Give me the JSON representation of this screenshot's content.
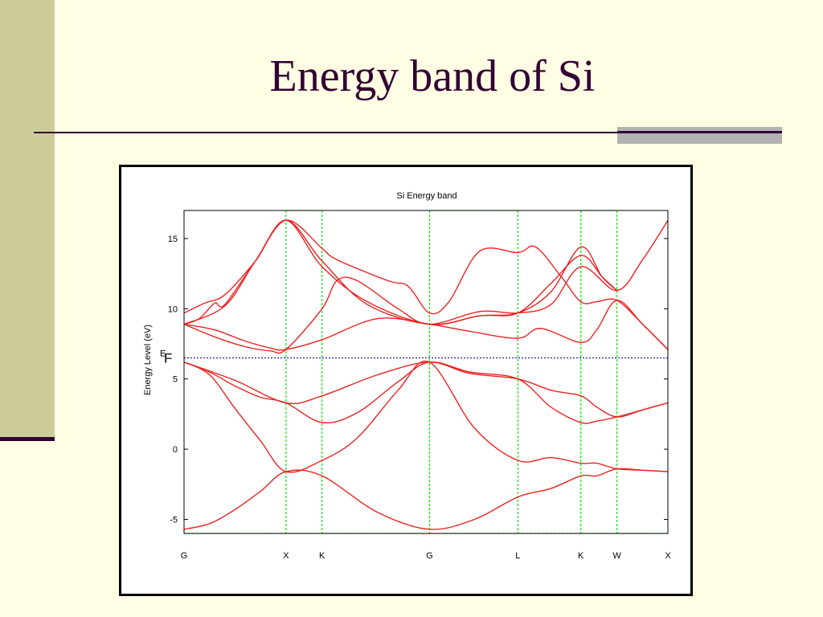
{
  "slide": {
    "title": "Energy band of Si",
    "colors": {
      "background": "#FFFDE3",
      "sidebar": "#CCCC99",
      "title_text": "#330033",
      "accent_gray": "#B2B2B2"
    }
  },
  "chart_data": {
    "type": "line",
    "title": "Si Energy band",
    "ylabel": "Energy Level (eV)",
    "xlabel": "",
    "ylim": [
      -6,
      17
    ],
    "yticks": [
      -5,
      0,
      5,
      10,
      15
    ],
    "x_points": [
      {
        "label": "G",
        "x": 0
      },
      {
        "label": "X",
        "x": 1
      },
      {
        "label": "K",
        "x": 1.354
      },
      {
        "label": "G",
        "x": 2.409
      },
      {
        "label": "L",
        "x": 3.276
      },
      {
        "label": "K",
        "x": 3.894
      },
      {
        "label": "W",
        "x": 4.248
      },
      {
        "label": "X",
        "x": 4.748
      }
    ],
    "xlim": [
      0,
      4.748
    ],
    "fermi_level": {
      "value": 6.5,
      "label": "E",
      "sub": "F"
    },
    "grid": "vertical dashed lines at high-symmetry points",
    "colors": {
      "bands": "#EE2222",
      "fermi": "#2222BB",
      "symmetry_lines": "#22DD22"
    },
    "series": [
      {
        "values": [
          [
            0,
            -5.7
          ],
          [
            0.25,
            -5.3
          ],
          [
            0.5,
            -4.3
          ],
          [
            0.75,
            -3.0
          ],
          [
            1,
            -1.6
          ],
          [
            1.354,
            -1.9
          ],
          [
            1.9,
            -4.5
          ],
          [
            2.409,
            -5.7
          ],
          [
            2.85,
            -5.0
          ],
          [
            3.276,
            -3.4
          ],
          [
            3.6,
            -2.8
          ],
          [
            3.894,
            -1.9
          ],
          [
            4.05,
            -1.9
          ],
          [
            4.248,
            -1.4
          ],
          [
            4.5,
            -1.5
          ],
          [
            4.748,
            -1.6
          ]
        ]
      },
      {
        "values": [
          [
            0,
            6.2
          ],
          [
            0.25,
            5.3
          ],
          [
            0.5,
            2.9
          ],
          [
            0.75,
            0.6
          ],
          [
            1,
            -1.6
          ],
          [
            1.354,
            -0.8
          ],
          [
            1.7,
            0.8
          ],
          [
            2.1,
            4.2
          ],
          [
            2.409,
            6.2
          ],
          [
            2.85,
            1.5
          ],
          [
            3.276,
            -0.8
          ],
          [
            3.6,
            -0.6
          ],
          [
            3.894,
            -1.0
          ],
          [
            4.05,
            -1.0
          ],
          [
            4.248,
            -1.4
          ],
          [
            4.5,
            -1.5
          ],
          [
            4.748,
            -1.6
          ]
        ]
      },
      {
        "values": [
          [
            0,
            6.2
          ],
          [
            0.25,
            5.5
          ],
          [
            0.5,
            4.5
          ],
          [
            0.75,
            3.7
          ],
          [
            1,
            3.3
          ],
          [
            1.354,
            1.9
          ],
          [
            1.7,
            2.6
          ],
          [
            2.1,
            4.8
          ],
          [
            2.409,
            6.2
          ],
          [
            2.8,
            5.5
          ],
          [
            3.276,
            5.0
          ],
          [
            3.6,
            3.0
          ],
          [
            3.894,
            1.9
          ],
          [
            4.05,
            2.0
          ],
          [
            4.248,
            2.3
          ],
          [
            4.5,
            2.8
          ],
          [
            4.748,
            3.3
          ]
        ]
      },
      {
        "values": [
          [
            0,
            6.2
          ],
          [
            0.5,
            4.9
          ],
          [
            1,
            3.3
          ],
          [
            1.354,
            3.8
          ],
          [
            1.9,
            5.3
          ],
          [
            2.409,
            6.2
          ],
          [
            2.8,
            5.4
          ],
          [
            3.276,
            5.0
          ],
          [
            3.6,
            4.2
          ],
          [
            3.894,
            3.8
          ],
          [
            4.05,
            3.0
          ],
          [
            4.248,
            2.3
          ],
          [
            4.5,
            2.8
          ],
          [
            4.748,
            3.3
          ]
        ]
      },
      {
        "values": [
          [
            0,
            8.9
          ],
          [
            0.3,
            8.5
          ],
          [
            0.6,
            7.7
          ],
          [
            0.85,
            7.2
          ],
          [
            1,
            7.1
          ],
          [
            1.354,
            7.8
          ],
          [
            1.9,
            9.3
          ],
          [
            2.409,
            8.9
          ],
          [
            2.8,
            8.4
          ],
          [
            3.276,
            7.9
          ],
          [
            3.5,
            8.6
          ],
          [
            3.894,
            7.6
          ],
          [
            4.05,
            8.5
          ],
          [
            4.248,
            10.6
          ],
          [
            4.5,
            8.9
          ],
          [
            4.748,
            7.1
          ]
        ]
      },
      {
        "values": [
          [
            0,
            8.9
          ],
          [
            0.3,
            8.0
          ],
          [
            0.6,
            7.3
          ],
          [
            0.85,
            7.0
          ],
          [
            1,
            7.1
          ],
          [
            1.354,
            10.0
          ],
          [
            1.5,
            12.0
          ],
          [
            1.7,
            12.0
          ],
          [
            2.1,
            10.0
          ],
          [
            2.409,
            8.9
          ],
          [
            2.9,
            9.8
          ],
          [
            3.276,
            9.7
          ],
          [
            3.6,
            10.3
          ],
          [
            3.894,
            13.0
          ],
          [
            4.248,
            11.3
          ],
          [
            4.5,
            13.5
          ],
          [
            4.748,
            16.3
          ]
        ]
      },
      {
        "values": [
          [
            0,
            8.9
          ],
          [
            0.4,
            10.2
          ],
          [
            0.7,
            13.4
          ],
          [
            1,
            16.3
          ],
          [
            1.354,
            14.3
          ],
          [
            1.5,
            13.5
          ],
          [
            2.0,
            12.0
          ],
          [
            2.2,
            11.6
          ],
          [
            2.409,
            9.7
          ],
          [
            2.6,
            10.5
          ],
          [
            2.9,
            14.1
          ],
          [
            3.276,
            14.0
          ],
          [
            3.45,
            14.4
          ],
          [
            3.7,
            12.3
          ],
          [
            3.894,
            10.5
          ],
          [
            4.05,
            10.5
          ],
          [
            4.248,
            10.6
          ],
          [
            4.5,
            8.9
          ],
          [
            4.748,
            7.1
          ]
        ]
      },
      {
        "values": [
          [
            0,
            9.7
          ],
          [
            0.2,
            10.4
          ],
          [
            0.4,
            11.0
          ],
          [
            0.7,
            13.4
          ],
          [
            1,
            16.3
          ],
          [
            1.354,
            13.0
          ],
          [
            1.8,
            10.5
          ],
          [
            2.409,
            8.9
          ],
          [
            2.9,
            9.5
          ],
          [
            3.276,
            9.7
          ],
          [
            3.6,
            11.2
          ],
          [
            3.894,
            14.4
          ],
          [
            4.1,
            12.3
          ],
          [
            4.248,
            11.3
          ]
        ]
      },
      {
        "values": [
          [
            0,
            8.9
          ],
          [
            0.15,
            9.3
          ],
          [
            0.3,
            10.4
          ],
          [
            0.4,
            10.3
          ],
          [
            0.7,
            13.4
          ],
          [
            1,
            16.3
          ],
          [
            1.354,
            13.4
          ],
          [
            1.8,
            10.3
          ],
          [
            2.409,
            8.9
          ],
          [
            2.9,
            9.5
          ],
          [
            3.276,
            9.7
          ],
          [
            3.6,
            11.8
          ],
          [
            3.894,
            13.8
          ],
          [
            4.1,
            12.3
          ],
          [
            4.248,
            11.3
          ]
        ]
      }
    ]
  }
}
